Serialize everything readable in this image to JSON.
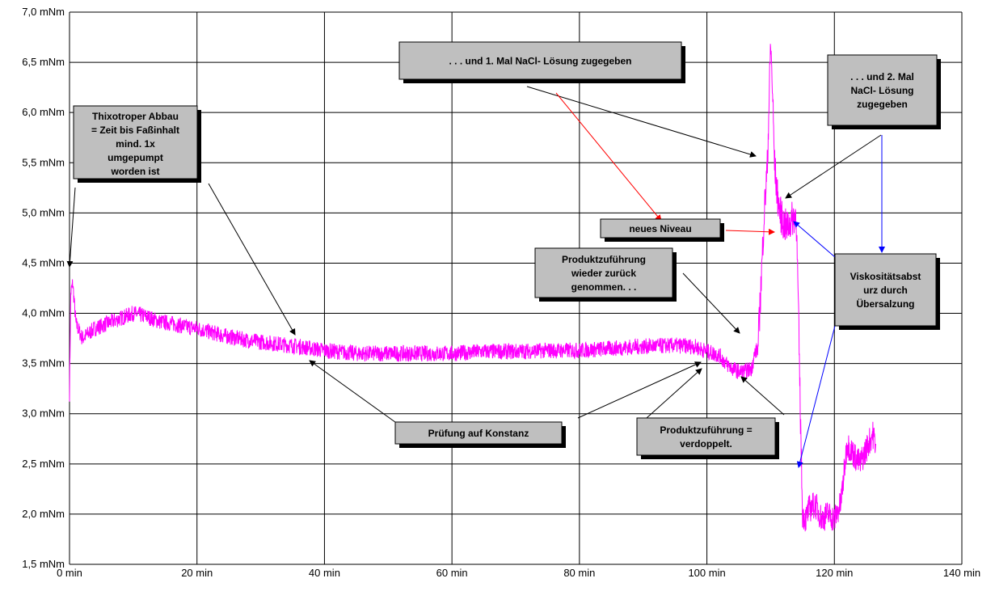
{
  "chart_data": {
    "type": "line",
    "title": "",
    "xlabel": "",
    "ylabel": "",
    "xlim": [
      0,
      140
    ],
    "ylim": [
      1.5,
      7.0
    ],
    "grid": true,
    "x_ticks": [
      "0 min",
      "20 min",
      "40 min",
      "60 min",
      "80 min",
      "100 min",
      "120 min",
      "140 min"
    ],
    "y_ticks": [
      "1,5 mNm",
      "2,0 mNm",
      "2,5 mNm",
      "3,0 mNm",
      "3,5 mNm",
      "4,0 mNm",
      "4,5 mNm",
      "5,0 mNm",
      "5,5 mNm",
      "6,0 mNm",
      "6,5 mNm",
      "7,0 mNm"
    ],
    "colors": {
      "series": "#ff00ff",
      "grid": "#000000",
      "note_fill": "#bfbfbf",
      "arrow_black": "#000000",
      "arrow_red": "#ff0000",
      "arrow_blue": "#0000ff"
    },
    "series": [
      {
        "x": [
          0,
          0.2,
          0.5,
          1,
          2,
          3,
          4,
          6,
          8,
          10,
          12,
          14,
          16,
          18,
          20,
          24,
          28,
          32,
          36,
          40,
          45,
          50,
          55,
          60,
          65,
          70,
          75,
          80,
          85,
          90,
          95,
          98,
          100,
          102,
          103,
          104,
          105,
          106,
          107,
          107.5,
          108,
          108.5,
          109,
          109.5,
          110,
          110.3,
          110.6,
          111,
          111.5,
          112,
          112.5,
          113,
          113.5,
          114,
          114.3,
          114.6,
          115,
          115.5,
          116,
          117,
          118,
          119,
          120,
          121,
          122,
          123,
          124,
          125,
          126,
          126.5
        ],
        "y": [
          3.2,
          4.2,
          4.3,
          3.9,
          3.75,
          3.8,
          3.85,
          3.9,
          3.95,
          4.0,
          3.97,
          3.92,
          3.9,
          3.87,
          3.85,
          3.78,
          3.73,
          3.7,
          3.67,
          3.63,
          3.6,
          3.6,
          3.6,
          3.6,
          3.62,
          3.62,
          3.63,
          3.63,
          3.65,
          3.67,
          3.68,
          3.67,
          3.62,
          3.58,
          3.5,
          3.45,
          3.42,
          3.42,
          3.45,
          3.6,
          3.65,
          4.3,
          5.0,
          5.5,
          6.7,
          6.2,
          5.5,
          5.2,
          5.0,
          4.9,
          4.85,
          4.9,
          4.95,
          5.0,
          4.2,
          3.2,
          2.0,
          1.95,
          2.05,
          2.1,
          1.95,
          2.0,
          1.95,
          2.1,
          2.7,
          2.6,
          2.5,
          2.65,
          2.8,
          2.7
        ]
      }
    ],
    "annotations": [
      {
        "id": "thixo",
        "lines": [
          "Thixotroper Abbau",
          "= Zeit bis Faßinhalt",
          "mind. 1x",
          "umgepumpt",
          "worden ist"
        ]
      },
      {
        "id": "nacl1",
        "lines": [
          ". . . und 1. Mal NaCl- Lösung zugegeben"
        ]
      },
      {
        "id": "nacl2",
        "lines": [
          ". . . und 2. Mal",
          "NaCl- Lösung",
          "zugegeben"
        ]
      },
      {
        "id": "niveau",
        "lines": [
          "neues Niveau"
        ]
      },
      {
        "id": "zurueck",
        "lines": [
          "Produktzuführung",
          "wieder zurück",
          "genommen. . ."
        ]
      },
      {
        "id": "viskositaet",
        "lines": [
          "Viskositätsabst",
          "urz durch",
          "Übersalzung"
        ]
      },
      {
        "id": "konstanz",
        "lines": [
          "Prüfung auf Konstanz"
        ]
      },
      {
        "id": "verdoppelt",
        "lines": [
          "Produktzuführung =",
          "verdoppelt."
        ]
      }
    ]
  }
}
